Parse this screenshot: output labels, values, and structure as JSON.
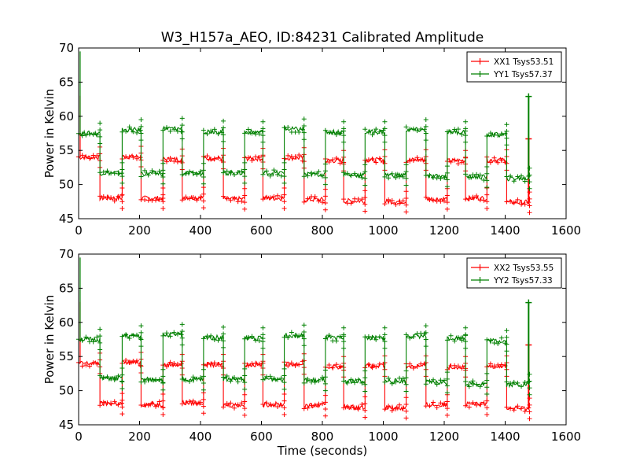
{
  "figure": {
    "title": "W3_H157a_AEO, ID:84231 Calibrated Amplitude",
    "xlabel": "Time (seconds)"
  },
  "chart_data": [
    {
      "type": "line",
      "ylabel": "Power in Kelvin",
      "xlim": [
        0,
        1600
      ],
      "ylim": [
        45,
        70
      ],
      "xticks": [
        "0",
        "200",
        "400",
        "600",
        "800",
        "1000",
        "1200",
        "1400",
        "1600"
      ],
      "yticks": [
        "45",
        "50",
        "55",
        "60",
        "65",
        "70"
      ],
      "legend_position": "top-right",
      "series": [
        {
          "name": "XX1 Tsys53.51",
          "color": "#ff0000",
          "spike": {
            "x": 5,
            "from": 63.0,
            "to": 54.0
          },
          "end_spike": {
            "x": 1477,
            "from": 47.3,
            "to": 56.7
          },
          "x_end": 1480,
          "segments": [
            {
              "x": [
                0,
                70
              ],
              "y": 54.0
            },
            {
              "x": [
                70,
                143
              ],
              "y": 48.0
            },
            {
              "x": [
                143,
                205
              ],
              "y": 54.1
            },
            {
              "x": [
                205,
                277
              ],
              "y": 48.0
            },
            {
              "x": [
                277,
                340
              ],
              "y": 53.7
            },
            {
              "x": [
                340,
                410
              ],
              "y": 48.1
            },
            {
              "x": [
                410,
                475
              ],
              "y": 53.8
            },
            {
              "x": [
                475,
                545
              ],
              "y": 47.9
            },
            {
              "x": [
                545,
                605
              ],
              "y": 53.8
            },
            {
              "x": [
                605,
                675
              ],
              "y": 48.0
            },
            {
              "x": [
                675,
                740
              ],
              "y": 53.9
            },
            {
              "x": [
                740,
                810
              ],
              "y": 47.8
            },
            {
              "x": [
                810,
                870
              ],
              "y": 53.5
            },
            {
              "x": [
                870,
                940
              ],
              "y": 47.6
            },
            {
              "x": [
                940,
                1005
              ],
              "y": 53.6
            },
            {
              "x": [
                1005,
                1075
              ],
              "y": 47.5
            },
            {
              "x": [
                1075,
                1140
              ],
              "y": 53.6
            },
            {
              "x": [
                1140,
                1210
              ],
              "y": 47.9
            },
            {
              "x": [
                1210,
                1270
              ],
              "y": 53.5
            },
            {
              "x": [
                1270,
                1340
              ],
              "y": 48.0
            },
            {
              "x": [
                1340,
                1405
              ],
              "y": 53.6
            },
            {
              "x": [
                1405,
                1480
              ],
              "y": 47.4
            }
          ]
        },
        {
          "name": "YY1 Tsys57.37",
          "color": "#008000",
          "spike": {
            "x": 5,
            "from": 69.5,
            "to": 57.5
          },
          "end_spike": {
            "x": 1477,
            "from": 50.9,
            "to": 62.9
          },
          "x_end": 1480,
          "segments": [
            {
              "x": [
                0,
                70
              ],
              "y": 57.5
            },
            {
              "x": [
                70,
                143
              ],
              "y": 51.7
            },
            {
              "x": [
                143,
                205
              ],
              "y": 58.0
            },
            {
              "x": [
                205,
                277
              ],
              "y": 51.6
            },
            {
              "x": [
                277,
                340
              ],
              "y": 58.2
            },
            {
              "x": [
                340,
                410
              ],
              "y": 51.6
            },
            {
              "x": [
                410,
                475
              ],
              "y": 57.8
            },
            {
              "x": [
                475,
                545
              ],
              "y": 51.7
            },
            {
              "x": [
                545,
                605
              ],
              "y": 57.7
            },
            {
              "x": [
                605,
                675
              ],
              "y": 51.7
            },
            {
              "x": [
                675,
                740
              ],
              "y": 58.1
            },
            {
              "x": [
                740,
                810
              ],
              "y": 51.5
            },
            {
              "x": [
                810,
                870
              ],
              "y": 57.7
            },
            {
              "x": [
                870,
                940
              ],
              "y": 51.4
            },
            {
              "x": [
                940,
                1005
              ],
              "y": 57.7
            },
            {
              "x": [
                1005,
                1075
              ],
              "y": 51.4
            },
            {
              "x": [
                1075,
                1140
              ],
              "y": 58.0
            },
            {
              "x": [
                1140,
                1210
              ],
              "y": 51.2
            },
            {
              "x": [
                1210,
                1270
              ],
              "y": 57.7
            },
            {
              "x": [
                1270,
                1340
              ],
              "y": 51.1
            },
            {
              "x": [
                1340,
                1405
              ],
              "y": 57.3
            },
            {
              "x": [
                1405,
                1480
              ],
              "y": 50.9
            }
          ]
        }
      ]
    },
    {
      "type": "line",
      "ylabel": "Power in Kelvin",
      "xlabel": "Time (seconds)",
      "xlim": [
        0,
        1600
      ],
      "ylim": [
        45,
        70
      ],
      "xticks": [
        "0",
        "200",
        "400",
        "600",
        "800",
        "1000",
        "1200",
        "1400",
        "1600"
      ],
      "yticks": [
        "45",
        "50",
        "55",
        "60",
        "65",
        "70"
      ],
      "legend_position": "top-right",
      "series": [
        {
          "name": "XX2 Tsys53.55",
          "color": "#ff0000",
          "spike": {
            "x": 5,
            "from": 63.0,
            "to": 54.0
          },
          "end_spike": {
            "x": 1477,
            "from": 47.3,
            "to": 56.7
          },
          "x_end": 1480,
          "segments": [
            {
              "x": [
                0,
                70
              ],
              "y": 54.0
            },
            {
              "x": [
                70,
                143
              ],
              "y": 48.1
            },
            {
              "x": [
                143,
                205
              ],
              "y": 54.1
            },
            {
              "x": [
                205,
                277
              ],
              "y": 48.0
            },
            {
              "x": [
                277,
                340
              ],
              "y": 53.8
            },
            {
              "x": [
                340,
                410
              ],
              "y": 48.2
            },
            {
              "x": [
                410,
                475
              ],
              "y": 53.8
            },
            {
              "x": [
                475,
                545
              ],
              "y": 47.9
            },
            {
              "x": [
                545,
                605
              ],
              "y": 53.8
            },
            {
              "x": [
                605,
                675
              ],
              "y": 48.0
            },
            {
              "x": [
                675,
                740
              ],
              "y": 53.9
            },
            {
              "x": [
                740,
                810
              ],
              "y": 47.8
            },
            {
              "x": [
                810,
                870
              ],
              "y": 53.5
            },
            {
              "x": [
                870,
                940
              ],
              "y": 47.6
            },
            {
              "x": [
                940,
                1005
              ],
              "y": 53.6
            },
            {
              "x": [
                1005,
                1075
              ],
              "y": 47.5
            },
            {
              "x": [
                1075,
                1140
              ],
              "y": 53.6
            },
            {
              "x": [
                1140,
                1210
              ],
              "y": 47.9
            },
            {
              "x": [
                1210,
                1270
              ],
              "y": 53.5
            },
            {
              "x": [
                1270,
                1340
              ],
              "y": 48.0
            },
            {
              "x": [
                1340,
                1405
              ],
              "y": 53.6
            },
            {
              "x": [
                1405,
                1480
              ],
              "y": 47.4
            }
          ]
        },
        {
          "name": "YY2 Tsys57.33",
          "color": "#008000",
          "spike": {
            "x": 5,
            "from": 69.5,
            "to": 57.5
          },
          "end_spike": {
            "x": 1477,
            "from": 50.9,
            "to": 62.9
          },
          "x_end": 1480,
          "segments": [
            {
              "x": [
                0,
                70
              ],
              "y": 57.5
            },
            {
              "x": [
                70,
                143
              ],
              "y": 51.8
            },
            {
              "x": [
                143,
                205
              ],
              "y": 58.0
            },
            {
              "x": [
                205,
                277
              ],
              "y": 51.6
            },
            {
              "x": [
                277,
                340
              ],
              "y": 58.2
            },
            {
              "x": [
                340,
                410
              ],
              "y": 51.6
            },
            {
              "x": [
                410,
                475
              ],
              "y": 57.8
            },
            {
              "x": [
                475,
                545
              ],
              "y": 51.7
            },
            {
              "x": [
                545,
                605
              ],
              "y": 57.7
            },
            {
              "x": [
                605,
                675
              ],
              "y": 51.7
            },
            {
              "x": [
                675,
                740
              ],
              "y": 58.1
            },
            {
              "x": [
                740,
                810
              ],
              "y": 51.5
            },
            {
              "x": [
                810,
                870
              ],
              "y": 57.7
            },
            {
              "x": [
                870,
                940
              ],
              "y": 51.4
            },
            {
              "x": [
                940,
                1005
              ],
              "y": 57.7
            },
            {
              "x": [
                1005,
                1075
              ],
              "y": 51.4
            },
            {
              "x": [
                1075,
                1140
              ],
              "y": 58.0
            },
            {
              "x": [
                1140,
                1210
              ],
              "y": 51.2
            },
            {
              "x": [
                1210,
                1270
              ],
              "y": 57.7
            },
            {
              "x": [
                1270,
                1340
              ],
              "y": 51.0
            },
            {
              "x": [
                1340,
                1405
              ],
              "y": 57.3
            },
            {
              "x": [
                1405,
                1480
              ],
              "y": 50.9
            }
          ]
        }
      ]
    }
  ]
}
